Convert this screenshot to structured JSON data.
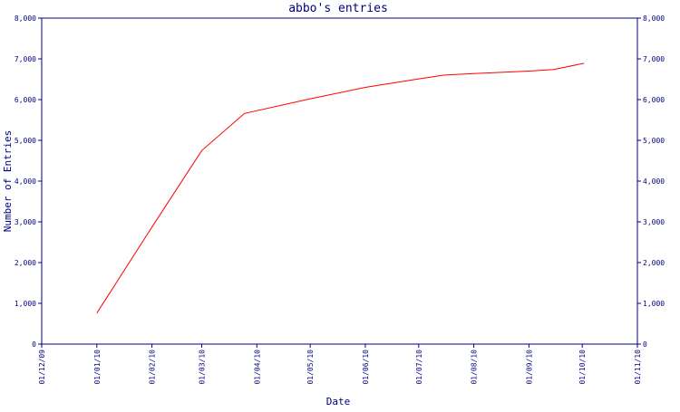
{
  "chart_data": {
    "type": "line",
    "title": "abbo's entries",
    "xlabel": "Date",
    "ylabel": "Number of Entries",
    "ylim": [
      0,
      8000
    ],
    "y_ticks": [
      0,
      1000,
      2000,
      3000,
      4000,
      5000,
      6000,
      7000,
      8000
    ],
    "y_tick_labels": [
      "0",
      "1,000",
      "2,000",
      "3,000",
      "4,000",
      "5,000",
      "6,000",
      "7,000",
      "8,000"
    ],
    "right_axis_mirrored": true,
    "x_ticks": [
      "2009-12-01",
      "2010-01-01",
      "2010-02-01",
      "2010-03-01",
      "2010-04-01",
      "2010-05-01",
      "2010-06-01",
      "2010-07-01",
      "2010-08-01",
      "2010-09-01",
      "2010-10-01",
      "2010-11-01"
    ],
    "x_tick_labels": [
      "01/12/09",
      "01/01/10",
      "01/02/10",
      "01/03/10",
      "01/04/10",
      "01/05/10",
      "01/06/10",
      "01/07/10",
      "01/08/10",
      "01/09/10",
      "01/10/10",
      "01/11/10"
    ],
    "grid": false,
    "line_color": "#ff0000",
    "axis_color": "#000080",
    "series": [
      {
        "x": [
          "2010-01-01",
          "2010-02-01",
          "2010-03-01",
          "2010-03-25",
          "2010-05-01",
          "2010-06-01",
          "2010-07-01",
          "2010-07-15",
          "2010-08-01",
          "2010-09-01",
          "2010-09-15",
          "2010-10-02"
        ],
        "values": [
          760,
          2870,
          4750,
          5660,
          6020,
          6300,
          6510,
          6600,
          6640,
          6700,
          6740,
          6890
        ]
      }
    ]
  }
}
